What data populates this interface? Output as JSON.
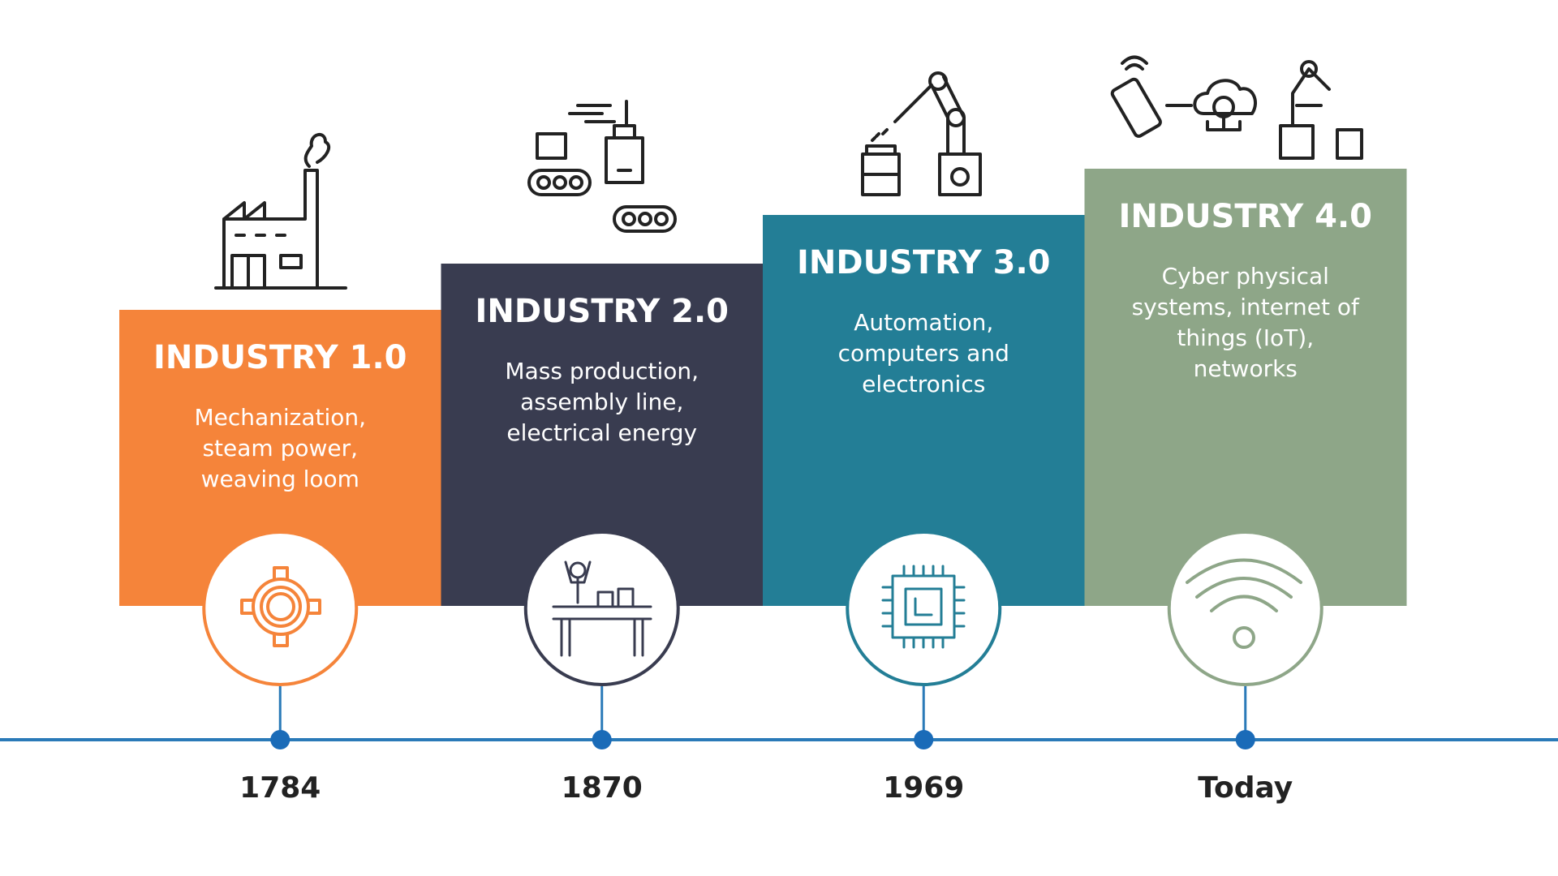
{
  "stages": [
    {
      "title": "INDUSTRY 1.0",
      "description": [
        "Mechanization,",
        "steam power,",
        "weaving loom"
      ],
      "year": "1784",
      "color": "#f5843a"
    },
    {
      "title": "INDUSTRY 2.0",
      "description": [
        "Mass production,",
        "assembly line,",
        "electrical energy"
      ],
      "year": "1870",
      "color": "#393c50"
    },
    {
      "title": "INDUSTRY 3.0",
      "description": [
        "Automation,",
        "computers and",
        "electronics"
      ],
      "year": "1969",
      "color": "#237e96"
    },
    {
      "title": "INDUSTRY 4.0",
      "description": [
        "Cyber physical",
        "systems, internet of",
        "things (IoT),",
        "networks"
      ],
      "year": "Today",
      "color": "#8ea688"
    }
  ]
}
